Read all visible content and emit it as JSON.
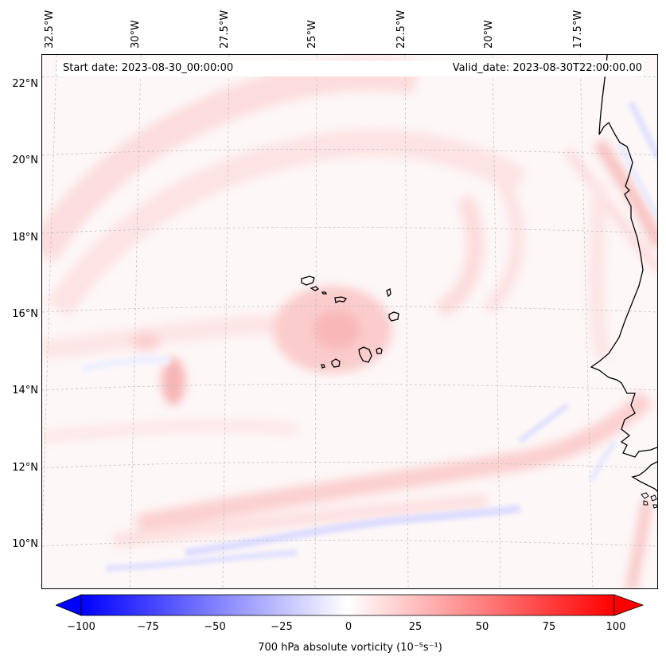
{
  "map": {
    "info": {
      "start_date": "Start date: 2023-08-30_00:00:00",
      "valid_date": "Valid_date: 2023-08-30T22:00:00.00"
    },
    "longitude_labels": [
      "32.5°W",
      "30°W",
      "27.5°W",
      "25°W",
      "22.5°W",
      "20°W",
      "17.5°W"
    ],
    "latitude_labels": [
      "22°N",
      "20°N",
      "18°N",
      "16°N",
      "14°N",
      "12°N",
      "10°N"
    ],
    "coastline_color": "#000000",
    "gridline_color": "#bdbdbd"
  },
  "colorbar": {
    "label": "700 hPa absolute vorticity (10⁻⁵s⁻¹)",
    "ticks": [
      "−100",
      "−75",
      "−50",
      "−25",
      "0",
      "25",
      "50",
      "75",
      "100"
    ],
    "range": [
      -100,
      100
    ],
    "low_color": "#0000ff",
    "mid_color": "#ffffff",
    "high_color": "#ff0000"
  }
}
